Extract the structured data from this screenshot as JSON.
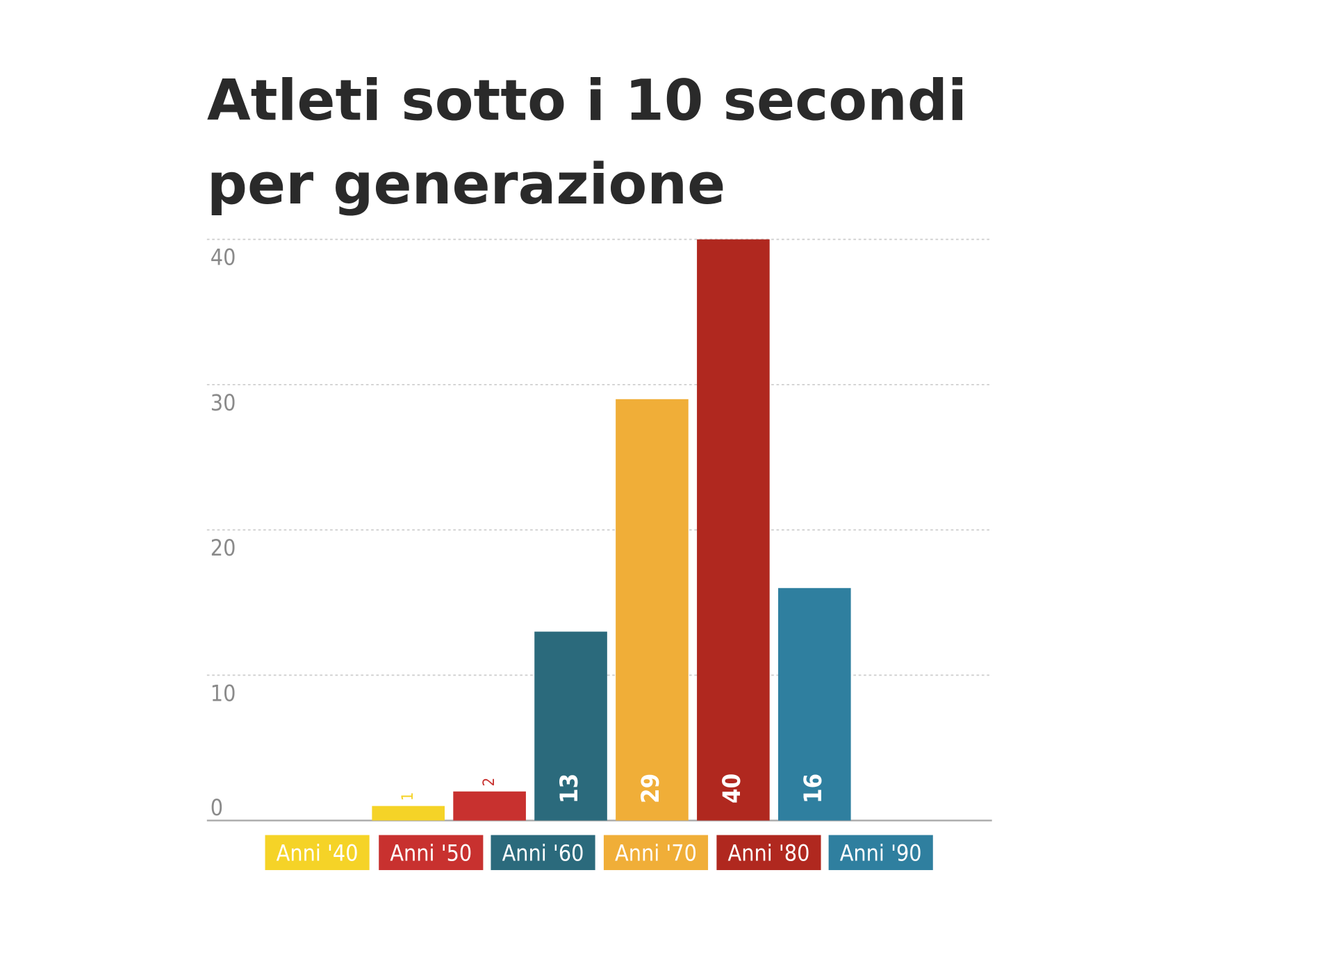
{
  "chart_data": {
    "type": "bar",
    "title": [
      "Atleti sotto i 10 secondi",
      "per generazione"
    ],
    "categories": [
      "Anni '40",
      "Anni '50",
      "Anni '60",
      "Anni '70",
      "Anni '80",
      "Anni '90"
    ],
    "values": [
      1,
      2,
      13,
      29,
      40,
      16
    ],
    "colors": [
      "#f5d327",
      "#c8312f",
      "#2b6a7c",
      "#f0ae38",
      "#b0281f",
      "#2f7f9f"
    ],
    "ylim": [
      0,
      40
    ],
    "yticks": [
      0,
      10,
      20,
      30,
      40
    ],
    "grid": true
  }
}
